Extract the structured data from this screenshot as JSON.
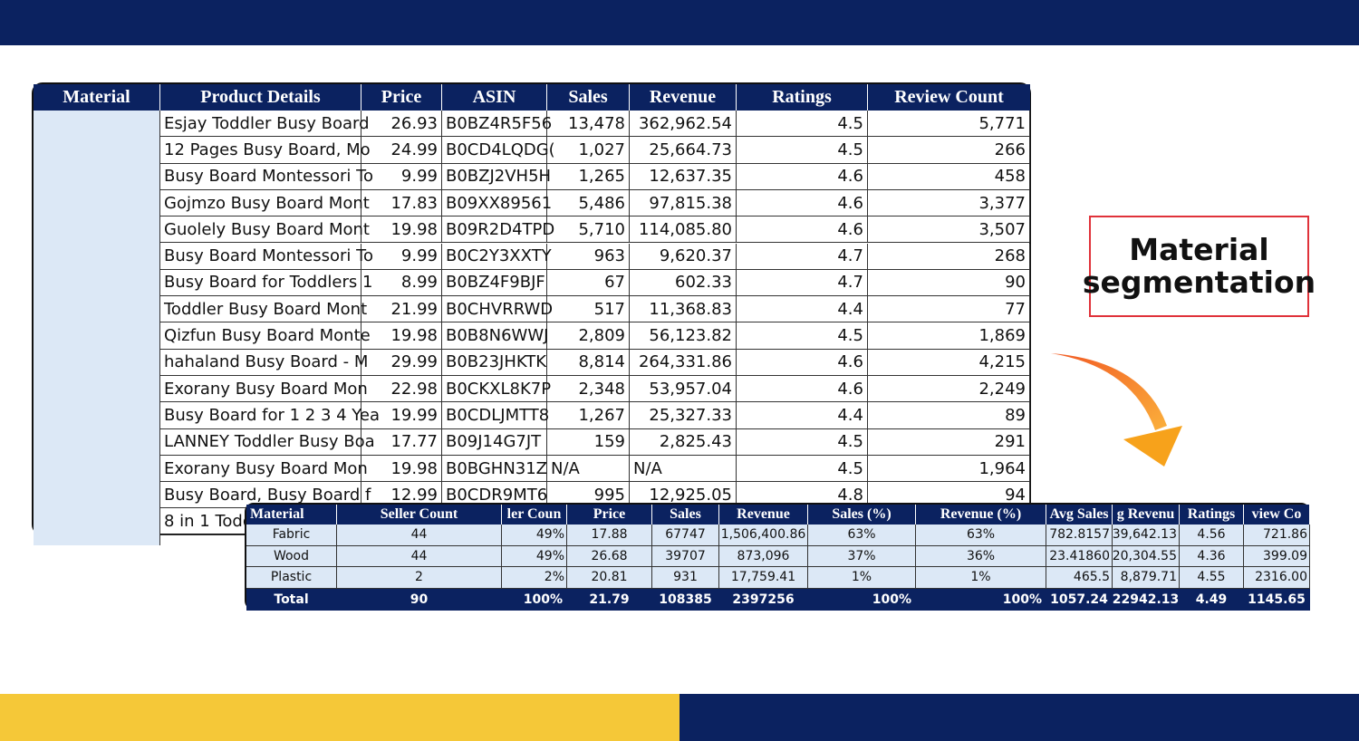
{
  "main_table": {
    "headers": [
      "Material",
      "Product Details",
      "Price",
      "ASIN",
      "Sales",
      "Revenue",
      "Ratings",
      "Review Count"
    ],
    "rows": [
      [
        "Esjay Toddler Busy Board",
        "26.93",
        "B0BZ4R5F56",
        "13,478",
        "362,962.54",
        "4.5",
        "5,771"
      ],
      [
        "12 Pages Busy Board, Mo",
        "24.99",
        "B0CD4LQDG(",
        "1,027",
        "25,664.73",
        "4.5",
        "266"
      ],
      [
        "Busy Board Montessori To",
        "9.99",
        "B0BZJ2VH5H",
        "1,265",
        "12,637.35",
        "4.6",
        "458"
      ],
      [
        "Gojmzo Busy Board Mont",
        "17.83",
        "B09XX89561",
        "5,486",
        "97,815.38",
        "4.6",
        "3,377"
      ],
      [
        "Guolely Busy Board Mont",
        "19.98",
        "B09R2D4TPD",
        "5,710",
        "114,085.80",
        "4.6",
        "3,507"
      ],
      [
        "Busy Board Montessori To",
        "9.99",
        "B0C2Y3XXTY",
        "963",
        "9,620.37",
        "4.7",
        "268"
      ],
      [
        "Busy Board for Toddlers 1",
        "8.99",
        "B0BZ4F9BJF",
        "67",
        "602.33",
        "4.7",
        "90"
      ],
      [
        "Toddler Busy Board Mont",
        "21.99",
        "B0CHVRRWD",
        "517",
        "11,368.83",
        "4.4",
        "77"
      ],
      [
        "Qizfun Busy Board Monte",
        "19.98",
        "B0B8N6WWJ",
        "2,809",
        "56,123.82",
        "4.5",
        "1,869"
      ],
      [
        "hahaland Busy Board - M",
        "29.99",
        "B0B23JHKTK",
        "8,814",
        "264,331.86",
        "4.6",
        "4,215"
      ],
      [
        "Exorany Busy Board Mon",
        "22.98",
        "B0CKXL8K7P",
        "2,348",
        "53,957.04",
        "4.6",
        "2,249"
      ],
      [
        "Busy Board for 1 2 3 4 Yea",
        "19.99",
        "B0CDLJMTT8",
        "1,267",
        "25,327.33",
        "4.4",
        "89"
      ],
      [
        "LANNEY Toddler Busy Boa",
        "17.77",
        "B09J14G7JT",
        "159",
        "2,825.43",
        "4.5",
        "291"
      ],
      [
        "Exorany Busy Board Mon",
        "19.98",
        "B0BGHN31Z",
        "N/A",
        "N/A",
        "4.5",
        "1,964"
      ],
      [
        "Busy Board, Busy Board f",
        "12.99",
        "B0CDR9MT6",
        "995",
        "12,925.05",
        "4.8",
        "94"
      ],
      [
        "8 in 1 Todd"
      ]
    ]
  },
  "segmentation_table": {
    "headers": [
      "Material",
      "Seller Count",
      "ler Coun",
      "Price",
      "Sales",
      "Revenue",
      "Sales (%)",
      "Revenue (%)",
      "Avg Sales",
      "g Revenu",
      "Ratings",
      "view Co"
    ],
    "rows": [
      [
        "Fabric",
        "44",
        "49%",
        "17.88",
        "67747",
        "1,506,400.86",
        "63%",
        "63%",
        "782.8157",
        "39,642.13",
        "4.56",
        "721.86"
      ],
      [
        "Wood",
        "44",
        "49%",
        "26.68",
        "39707",
        "873,096",
        "37%",
        "36%",
        "23.41860",
        "20,304.55",
        "4.36",
        "399.09"
      ],
      [
        "Plastic",
        "2",
        "2%",
        "20.81",
        "931",
        "17,759.41",
        "1%",
        "1%",
        "465.5",
        "8,879.71",
        "4.55",
        "2316.00"
      ]
    ],
    "total": [
      "Total",
      "90",
      "100%",
      "21.79",
      "108385",
      "2397256",
      "100%",
      "100%",
      "1057.24",
      "22942.13",
      "4.49",
      "1145.65"
    ]
  },
  "label": "Material segmentation"
}
